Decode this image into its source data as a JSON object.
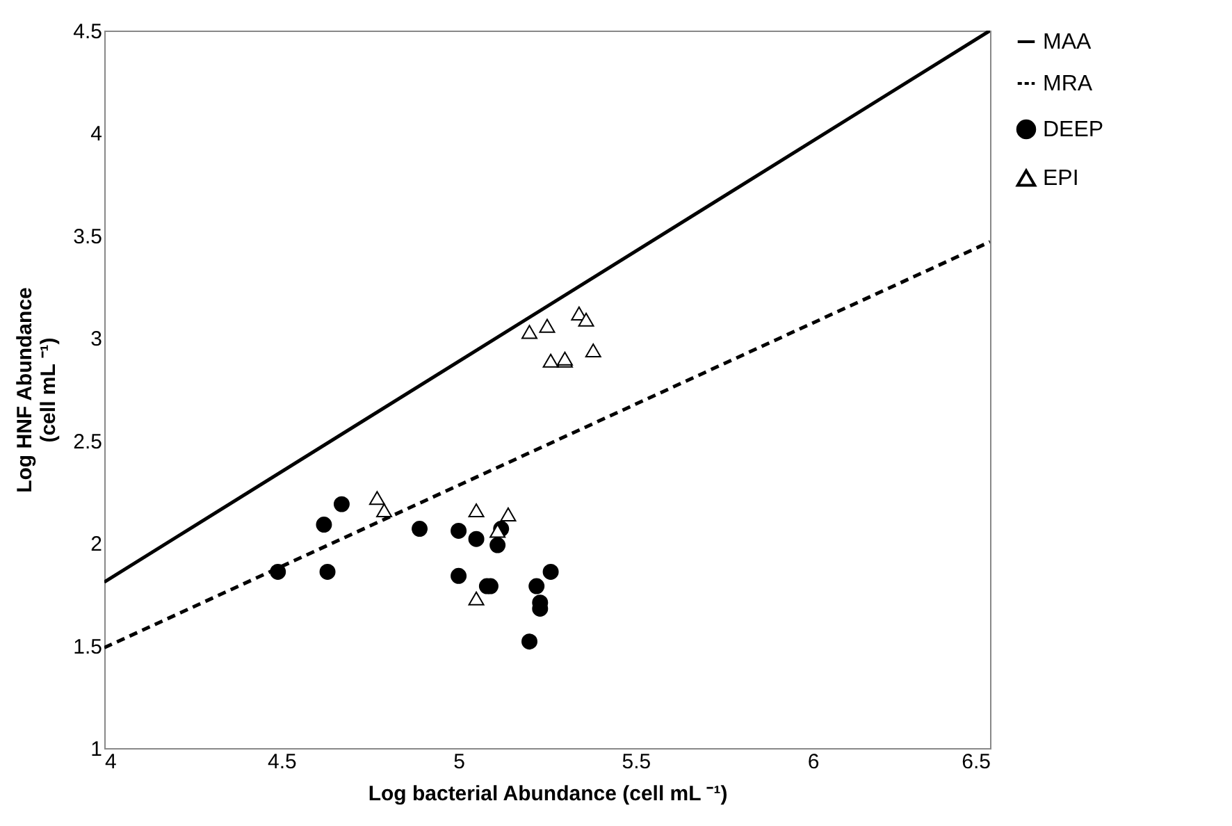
{
  "chart_data": {
    "type": "scatter",
    "xlabel": "Log bacterial Abundance (cell mL ⁻¹)",
    "ylabel": "Log HNF Abundance\n(cell mL ⁻¹)",
    "xlim": [
      4,
      6.5
    ],
    "ylim": [
      1,
      4.5
    ],
    "xticks": [
      4,
      4.5,
      5,
      5.5,
      6,
      6.5
    ],
    "yticks": [
      1,
      1.5,
      2,
      2.5,
      3,
      3.5,
      4,
      4.5
    ],
    "grid": false,
    "legend": "right",
    "series": [
      {
        "name": "MAA",
        "type": "line",
        "line_style": "solid",
        "marker": "none",
        "color": "#000000",
        "x": [
          4,
          6.5
        ],
        "values": [
          1.81,
          4.5
        ]
      },
      {
        "name": "MRA",
        "type": "line",
        "line_style": "dashed",
        "marker": "none",
        "color": "#000000",
        "x": [
          4,
          6.5
        ],
        "values": [
          1.49,
          3.47
        ]
      },
      {
        "name": "DEEP",
        "type": "scatter",
        "marker": "circle",
        "color": "#000000",
        "x": [
          4.67,
          4.62,
          4.49,
          4.63,
          4.89,
          5.0,
          5.05,
          5.12,
          5.11,
          5.0,
          5.08,
          5.09,
          5.26,
          5.22,
          5.23,
          5.23,
          5.2
        ],
        "values": [
          2.19,
          2.09,
          1.86,
          1.86,
          2.07,
          2.06,
          2.02,
          2.07,
          1.99,
          1.84,
          1.79,
          1.79,
          1.86,
          1.79,
          1.71,
          1.68,
          1.52
        ]
      },
      {
        "name": "EPI",
        "type": "scatter",
        "marker": "triangle",
        "color": "#ffffff",
        "x": [
          4.77,
          4.79,
          5.05,
          5.14,
          5.05,
          5.11,
          5.2,
          5.25,
          5.34,
          5.36,
          5.26,
          5.3,
          5.3,
          5.38
        ],
        "values": [
          2.22,
          2.16,
          2.16,
          2.14,
          1.73,
          2.06,
          3.03,
          3.06,
          3.12,
          3.09,
          2.89,
          2.89,
          2.9,
          2.94
        ]
      }
    ]
  }
}
